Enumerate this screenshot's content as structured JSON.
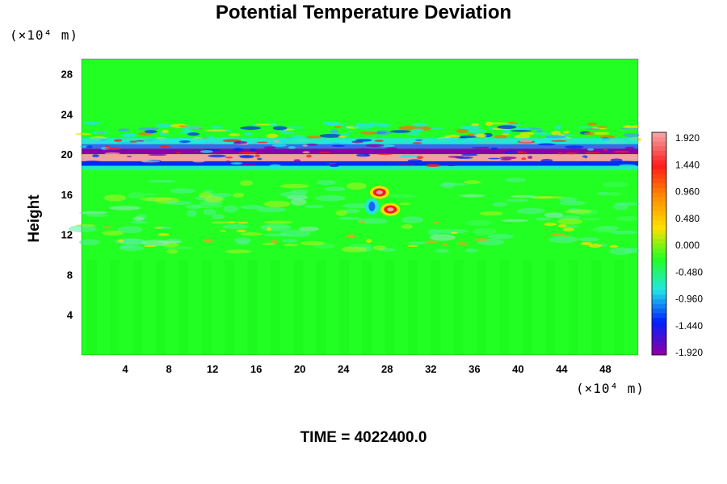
{
  "chart_data": {
    "type": "heatmap",
    "title": "Potential Temperature Deviation",
    "ylabel": "Height",
    "xlabel": "",
    "x_unit": "(×10⁴ m)",
    "y_unit": "(×10⁴ m)",
    "x_ticks": [
      "4",
      "8",
      "12",
      "16",
      "20",
      "24",
      "28",
      "32",
      "36",
      "40",
      "44",
      "48"
    ],
    "y_ticks": [
      "4",
      "8",
      "12",
      "16",
      "20",
      "24",
      "28"
    ],
    "xlim": [
      0,
      51
    ],
    "ylim": [
      0,
      29.5
    ],
    "colorbar": {
      "labels": [
        "1.920",
        "1.440",
        "0.960",
        "0.480",
        "0.000",
        "-0.480",
        "-0.960",
        "-1.440",
        "-1.920"
      ],
      "range": [
        -2.0,
        2.0
      ]
    },
    "features": [
      {
        "region": "background",
        "value": 0.0
      },
      {
        "region": "warm-band",
        "y": 19.6,
        "value": 2.0
      },
      {
        "region": "cold-band-upper",
        "y": 20.4,
        "value": -2.0
      },
      {
        "region": "cold-band-lower",
        "y": 19.0,
        "value": -1.6
      },
      {
        "region": "wave-band",
        "y_range": [
          21,
          23
        ],
        "value": "±1.2"
      },
      {
        "region": "anomaly",
        "x": 27.3,
        "y": 16.2,
        "value": 1.9
      },
      {
        "region": "anomaly",
        "x": 28.3,
        "y": 14.5,
        "value": 1.8
      },
      {
        "region": "anomaly",
        "x": 26.6,
        "y": 14.8,
        "value": -1.0
      }
    ],
    "colors": {
      "c_max": "#f4a0a0",
      "c_red": "#ff1a1a",
      "c_orange": "#ff8c00",
      "c_yellow": "#ffe000",
      "c_green": "#22ff22",
      "c_cyan": "#22e6e6",
      "c_blue": "#0022ff",
      "c_purple": "#8800aa"
    }
  },
  "time_label": "TIME = 4022400.0"
}
